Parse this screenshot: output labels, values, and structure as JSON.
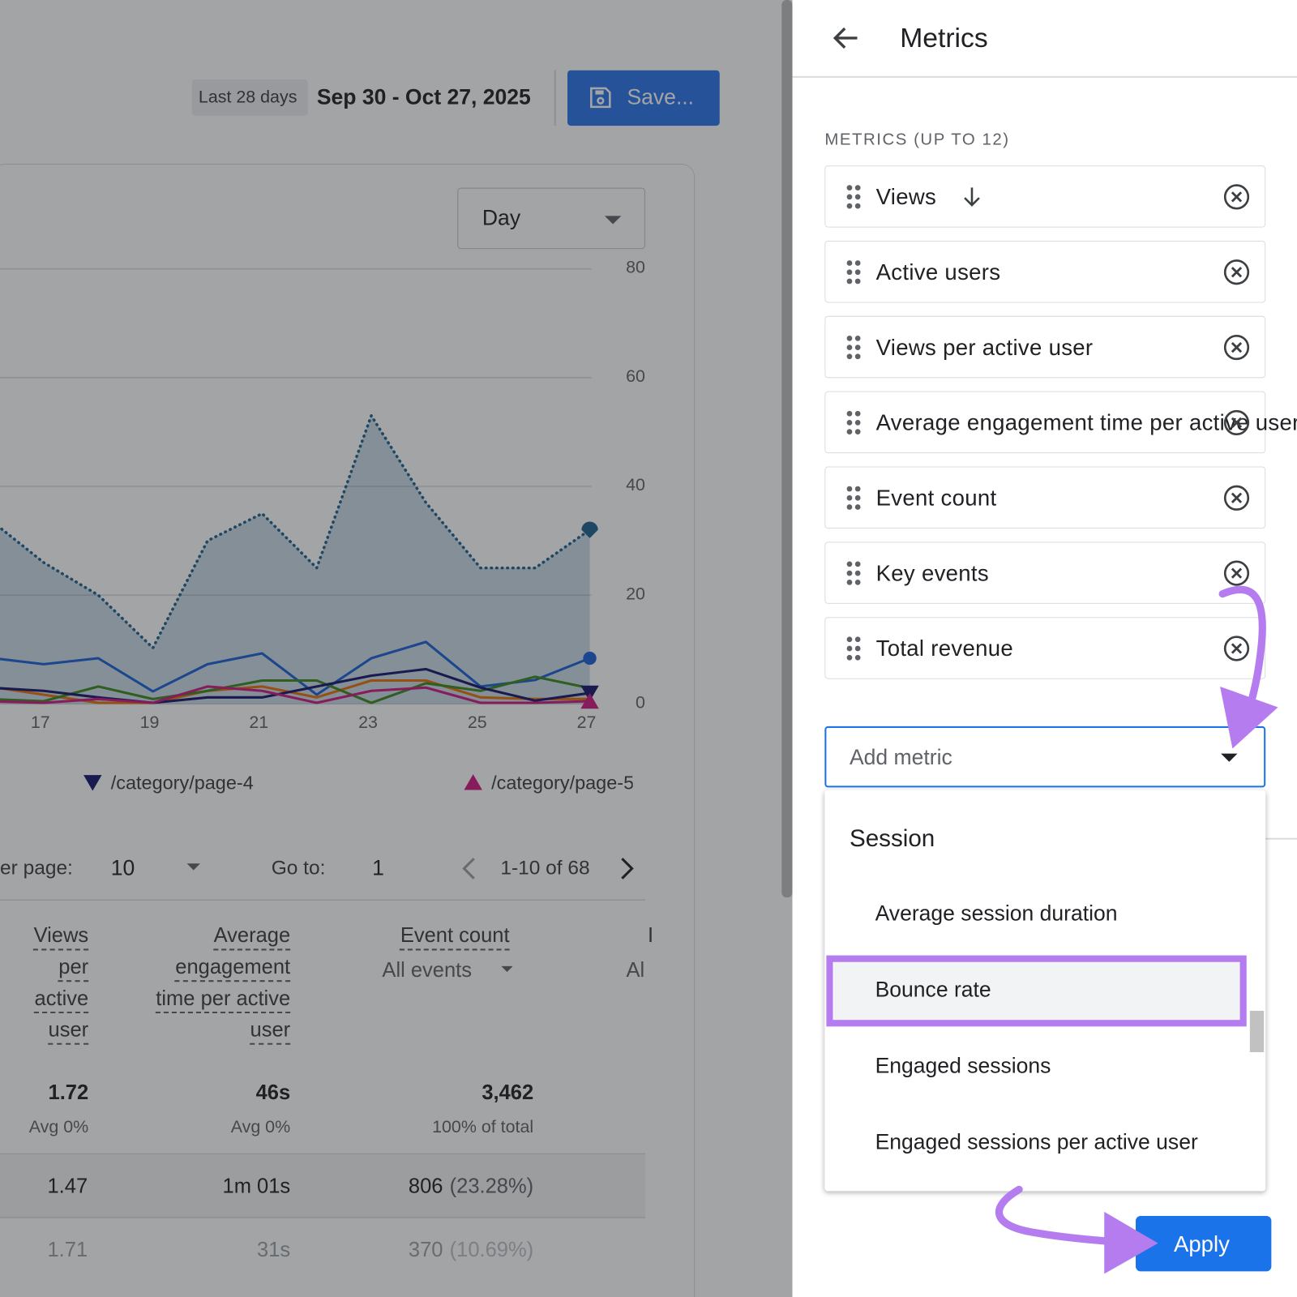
{
  "report": {
    "date_preset": "Last 28 days",
    "date_range": "Sep 30 - Oct 27, 2025",
    "save": "Save...",
    "granularity": "Day",
    "pagination": {
      "rows_label": "er page:",
      "rows": "10",
      "goto_label": "Go to:",
      "goto": "1",
      "range": "1-10 of 68"
    },
    "table": {
      "headers": [
        {
          "label": "Views per active user"
        },
        {
          "label": "Average engagement time per active user"
        },
        {
          "label": "Event count",
          "sub": "All events"
        },
        {
          "label": "I",
          "sub": "Al"
        }
      ],
      "totals": [
        [
          "1.72",
          "Avg 0%"
        ],
        [
          "46s",
          "Avg 0%"
        ],
        [
          "3,462",
          "100% of total"
        ]
      ],
      "rows": [
        [
          "1.47",
          "1m 01s",
          "806",
          "(23.28%)"
        ],
        [
          "1.71",
          "31s",
          "370",
          "(10.69%)"
        ]
      ]
    }
  },
  "chart_data": {
    "type": "line",
    "x": [
      16,
      17,
      18,
      19,
      20,
      21,
      22,
      23,
      24,
      25,
      26,
      27
    ],
    "xlim": [
      16.2,
      27
    ],
    "xticks": [
      17,
      19,
      21,
      23,
      25,
      27
    ],
    "ylim": [
      0,
      80
    ],
    "yticks": [
      0,
      20,
      40,
      60,
      80
    ],
    "grid": true,
    "series": [
      {
        "color": "#1d6190",
        "line_style": "dotted",
        "area": true,
        "marker": "pin",
        "values": [
          34,
          26,
          20,
          10.3,
          30,
          35,
          25,
          53,
          37,
          25,
          25,
          32
        ]
      },
      {
        "color": "#1a5fd6",
        "marker": "circle",
        "values": [
          8.5,
          7.3,
          8.4,
          2.3,
          7.3,
          9.3,
          1.7,
          8.4,
          11.4,
          3.2,
          4.4,
          8.4
        ]
      },
      {
        "color": "#e8710a",
        "values": [
          3.2,
          1.7,
          0.2,
          0.2,
          2.4,
          3.2,
          1.2,
          4.3,
          4.3,
          1.2,
          0.9,
          0.9
        ]
      },
      {
        "color": "#3b8a1e",
        "values": [
          0.9,
          0.5,
          3.2,
          0.9,
          2.4,
          4.3,
          4.3,
          0.2,
          3.8,
          2.4,
          5,
          2.9
        ]
      },
      {
        "name": "/category/page-4",
        "color": "#16166e",
        "marker": "triangle-down",
        "values": [
          3,
          2.4,
          1.2,
          0.2,
          1.2,
          1.2,
          3.2,
          5.2,
          6.4,
          3,
          0.6,
          2
        ]
      },
      {
        "name": "/category/page-5",
        "color": "#d01884",
        "marker": "triangle-up",
        "values": [
          0.5,
          0.2,
          0.9,
          0.2,
          3.2,
          2.4,
          0.2,
          2.4,
          3,
          0.2,
          0.2,
          0.5
        ]
      }
    ]
  },
  "panel": {
    "title": "Metrics",
    "section": "METRICS (UP TO 12)",
    "metrics": [
      "Views",
      "Active users",
      "Views per active user",
      "Average engagement time per active user",
      "Event count",
      "Key events",
      "Total revenue"
    ],
    "add_placeholder": "Add metric",
    "menu": {
      "group": "Session",
      "items": [
        "Average session duration",
        "Bounce rate",
        "Engaged sessions",
        "Engaged sessions per active user"
      ],
      "selected": 1
    },
    "apply": "Apply"
  }
}
